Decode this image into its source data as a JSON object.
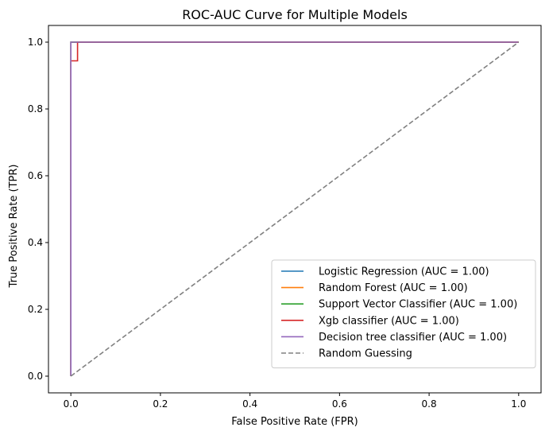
{
  "chart_data": {
    "type": "line",
    "title": "ROC-AUC Curve for Multiple Models",
    "xlabel": "False Positive Rate (FPR)",
    "ylabel": "True Positive Rate (TPR)",
    "xlim": [
      -0.05,
      1.05
    ],
    "ylim": [
      -0.05,
      1.05
    ],
    "xticks": [
      0.0,
      0.2,
      0.4,
      0.6,
      0.8,
      1.0
    ],
    "xtick_labels": [
      "0.0",
      "0.2",
      "0.4",
      "0.6",
      "0.8",
      "1.0"
    ],
    "yticks": [
      0.0,
      0.2,
      0.4,
      0.6,
      0.8,
      1.0
    ],
    "ytick_labels": [
      "0.0",
      "0.2",
      "0.4",
      "0.6",
      "0.8",
      "1.0"
    ],
    "grid": false,
    "legend_position": "lower right",
    "series": [
      {
        "name": "Logistic Regression (AUC = 1.00)",
        "color": "#1f77b4",
        "style": "solid",
        "x": [
          0,
          0,
          1
        ],
        "y": [
          0,
          1,
          1
        ]
      },
      {
        "name": "Random Forest (AUC = 1.00)",
        "color": "#ff7f0e",
        "style": "solid",
        "x": [
          0,
          0,
          1
        ],
        "y": [
          0,
          1,
          1
        ]
      },
      {
        "name": "Support Vector Classifier (AUC = 1.00)",
        "color": "#2ca02c",
        "style": "solid",
        "x": [
          0,
          0,
          1
        ],
        "y": [
          0,
          1,
          1
        ]
      },
      {
        "name": "Xgb classifier (AUC = 1.00)",
        "color": "#d62728",
        "style": "solid",
        "x": [
          0,
          0,
          0.015,
          0.015,
          1
        ],
        "y": [
          0,
          0.944,
          0.944,
          1,
          1
        ]
      },
      {
        "name": "Decision tree classifier (AUC = 1.00)",
        "color": "#9467bd",
        "style": "solid",
        "x": [
          0,
          0,
          1
        ],
        "y": [
          0,
          1,
          1
        ]
      },
      {
        "name": "Random Guessing",
        "color": "#808080",
        "style": "dashed",
        "x": [
          0,
          1
        ],
        "y": [
          0,
          1
        ]
      }
    ]
  }
}
